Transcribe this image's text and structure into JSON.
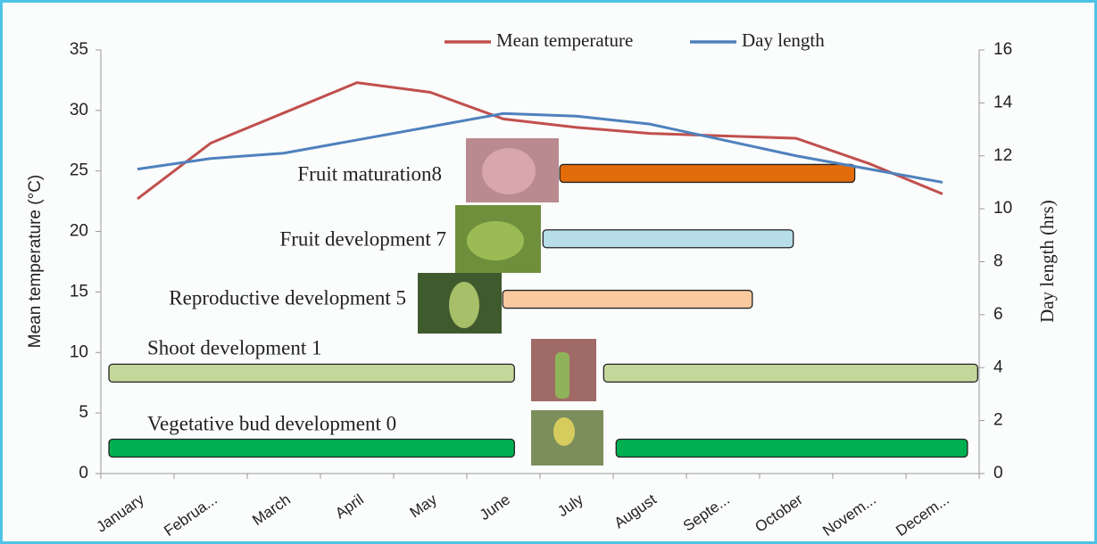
{
  "chart_data": {
    "type": "line",
    "categories": [
      "January",
      "Februa...",
      "March",
      "April",
      "May",
      "June",
      "July",
      "August",
      "Septe...",
      "October",
      "Novem...",
      "Decem..."
    ],
    "ylabel": "Mean temperature (°C)",
    "y2label": "Day length (hrs)",
    "ylim": [
      0,
      35
    ],
    "yticks": [
      0,
      5,
      10,
      15,
      20,
      25,
      30,
      35
    ],
    "y2lim": [
      0,
      16
    ],
    "y2ticks": [
      0,
      2,
      4,
      6,
      8,
      10,
      12,
      14,
      16
    ],
    "series": [
      {
        "name": "Mean temperature",
        "color": "#c0504d",
        "values": [
          22.7,
          27.3,
          29.8,
          32.3,
          31.5,
          29.3,
          28.6,
          28.1,
          27.9,
          27.7,
          25.6,
          23.1
        ]
      },
      {
        "name": "Day length",
        "color": "#4f81bd",
        "axis": "y2",
        "values": [
          11.5,
          11.9,
          12.1,
          12.6,
          13.1,
          13.6,
          13.5,
          13.2,
          12.6,
          12.0,
          11.5,
          11.0
        ]
      }
    ],
    "phases": [
      {
        "label": "Fruit maturation8",
        "y": 24.8,
        "color": "#e36c0a",
        "segments": [
          [
            5.77,
            9.8
          ]
        ]
      },
      {
        "label": "Fruit development 7",
        "y": 19.4,
        "color": "#b7dde8",
        "segments": [
          [
            5.54,
            8.96
          ]
        ]
      },
      {
        "label": "Reproductive development 5",
        "y": 14.4,
        "color": "#fbc9a0",
        "segments": [
          [
            4.99,
            8.4
          ]
        ]
      },
      {
        "label": "Shoot development 1",
        "y": 8.3,
        "color": "#c4d79b",
        "segments": [
          [
            -0.39,
            5.15
          ],
          [
            6.37,
            11.48
          ]
        ]
      },
      {
        "label": "Vegetative bud development 0",
        "y": 2.1,
        "color": "#00b050",
        "segments": [
          [
            -0.39,
            5.15
          ],
          [
            6.54,
            11.34
          ]
        ]
      }
    ]
  }
}
